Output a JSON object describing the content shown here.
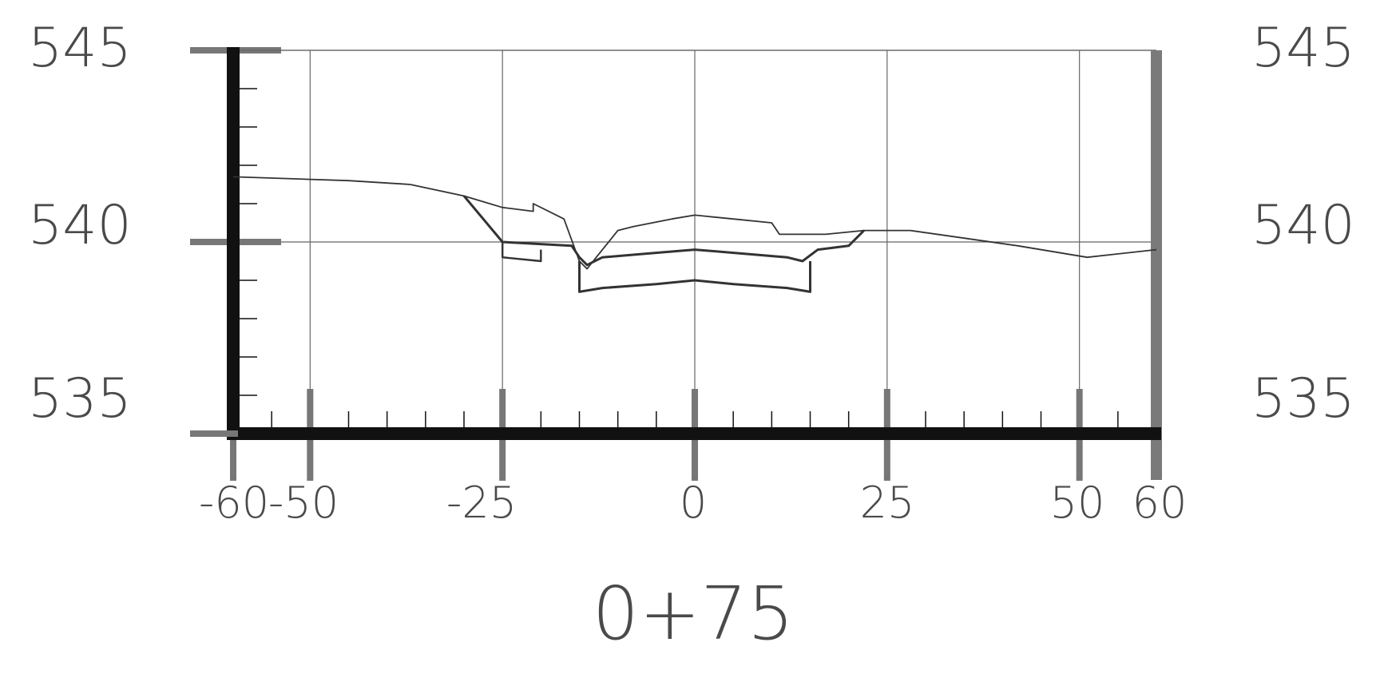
{
  "station_label": "0+75",
  "elevation_labels_left": [
    "545",
    "540",
    "535"
  ],
  "elevation_labels_right": [
    "545",
    "540",
    "535"
  ],
  "offset_labels": [
    "-60",
    "-50",
    "-25",
    "0",
    "25",
    "50",
    "60"
  ],
  "colors": {
    "frame": "#111111",
    "grid": "#666666",
    "profile": "#333333",
    "label": "#4a4a4a"
  },
  "chart_data": {
    "type": "line",
    "title": "0+75",
    "xlabel": "",
    "ylabel": "",
    "xlim": [
      -60,
      60
    ],
    "ylim": [
      535,
      545
    ],
    "x_ticks": [
      -60,
      -50,
      -25,
      0,
      25,
      50,
      60
    ],
    "y_ticks": [
      535,
      540,
      545
    ],
    "grid": true,
    "series": [
      {
        "points": [
          [
            -60,
            541.7
          ],
          [
            -45,
            541.6
          ],
          [
            -37,
            541.5
          ],
          [
            -30,
            541.2
          ],
          [
            -25,
            540.9
          ],
          [
            -21,
            540.8
          ],
          [
            -21,
            541.0
          ],
          [
            -17,
            540.6
          ],
          [
            -15,
            539.5
          ],
          [
            -14,
            539.3
          ],
          [
            -12,
            539.8
          ],
          [
            -10,
            540.3
          ],
          [
            -8,
            540.4
          ],
          [
            -3,
            540.6
          ],
          [
            0,
            540.7
          ],
          [
            5,
            540.6
          ],
          [
            10,
            540.5
          ],
          [
            11,
            540.2
          ],
          [
            12,
            540.2
          ],
          [
            17,
            540.2
          ],
          [
            22,
            540.3
          ],
          [
            28,
            540.3
          ],
          [
            35,
            540.1
          ],
          [
            42,
            539.9
          ],
          [
            51,
            539.6
          ],
          [
            60,
            539.8
          ]
        ]
      },
      {
        "points": [
          [
            -30,
            541.2
          ],
          [
            -25,
            540.0
          ],
          [
            -16,
            539.9
          ],
          [
            -15,
            539.6
          ],
          [
            -14,
            539.4
          ],
          [
            -12,
            539.6
          ],
          [
            -6,
            539.7
          ],
          [
            0,
            539.8
          ],
          [
            6,
            539.7
          ],
          [
            12,
            539.6
          ],
          [
            14,
            539.5
          ],
          [
            16,
            539.8
          ],
          [
            20,
            539.9
          ],
          [
            22,
            540.3
          ]
        ]
      },
      {
        "points": [
          [
            -15,
            539.5
          ],
          [
            -15,
            538.7
          ],
          [
            -12,
            538.8
          ],
          [
            -5,
            538.9
          ],
          [
            0,
            539.0
          ],
          [
            5,
            538.9
          ],
          [
            12,
            538.8
          ],
          [
            15,
            538.7
          ],
          [
            15,
            539.5
          ]
        ]
      },
      {
        "points": [
          [
            -25,
            540.0
          ],
          [
            -25,
            539.6
          ],
          [
            -20,
            539.5
          ],
          [
            -20,
            539.8
          ]
        ]
      }
    ]
  }
}
